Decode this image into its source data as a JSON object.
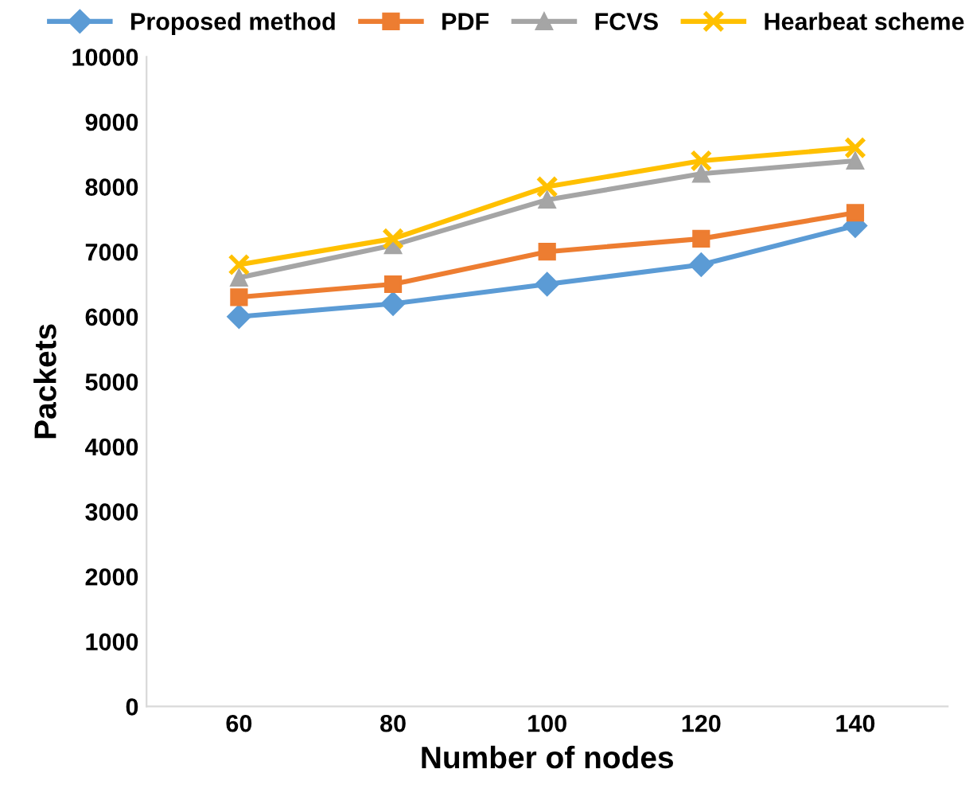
{
  "chart_data": {
    "type": "line",
    "xlabel": "Number of nodes",
    "ylabel": "Packets",
    "categories": [
      "60",
      "80",
      "100",
      "120",
      "140"
    ],
    "series": [
      {
        "name": "Proposed method",
        "color": "#5b9bd5",
        "marker": "diamond",
        "values": [
          6000,
          6200,
          6500,
          6800,
          7400
        ]
      },
      {
        "name": "PDF",
        "color": "#ed7d31",
        "marker": "square",
        "values": [
          6300,
          6500,
          7000,
          7200,
          7600
        ]
      },
      {
        "name": "FCVS",
        "color": "#a5a5a5",
        "marker": "triangle",
        "values": [
          6600,
          7100,
          7800,
          8200,
          8400
        ]
      },
      {
        "name": "Hearbeat scheme",
        "color": "#ffc000",
        "marker": "cross",
        "values": [
          6800,
          7200,
          8000,
          8400,
          8600
        ]
      }
    ],
    "ylim": [
      0,
      10000
    ],
    "yticks": [
      0,
      1000,
      2000,
      3000,
      4000,
      5000,
      6000,
      7000,
      8000,
      9000,
      10000
    ],
    "grid": false,
    "legend": "top",
    "line_style": "solid"
  }
}
